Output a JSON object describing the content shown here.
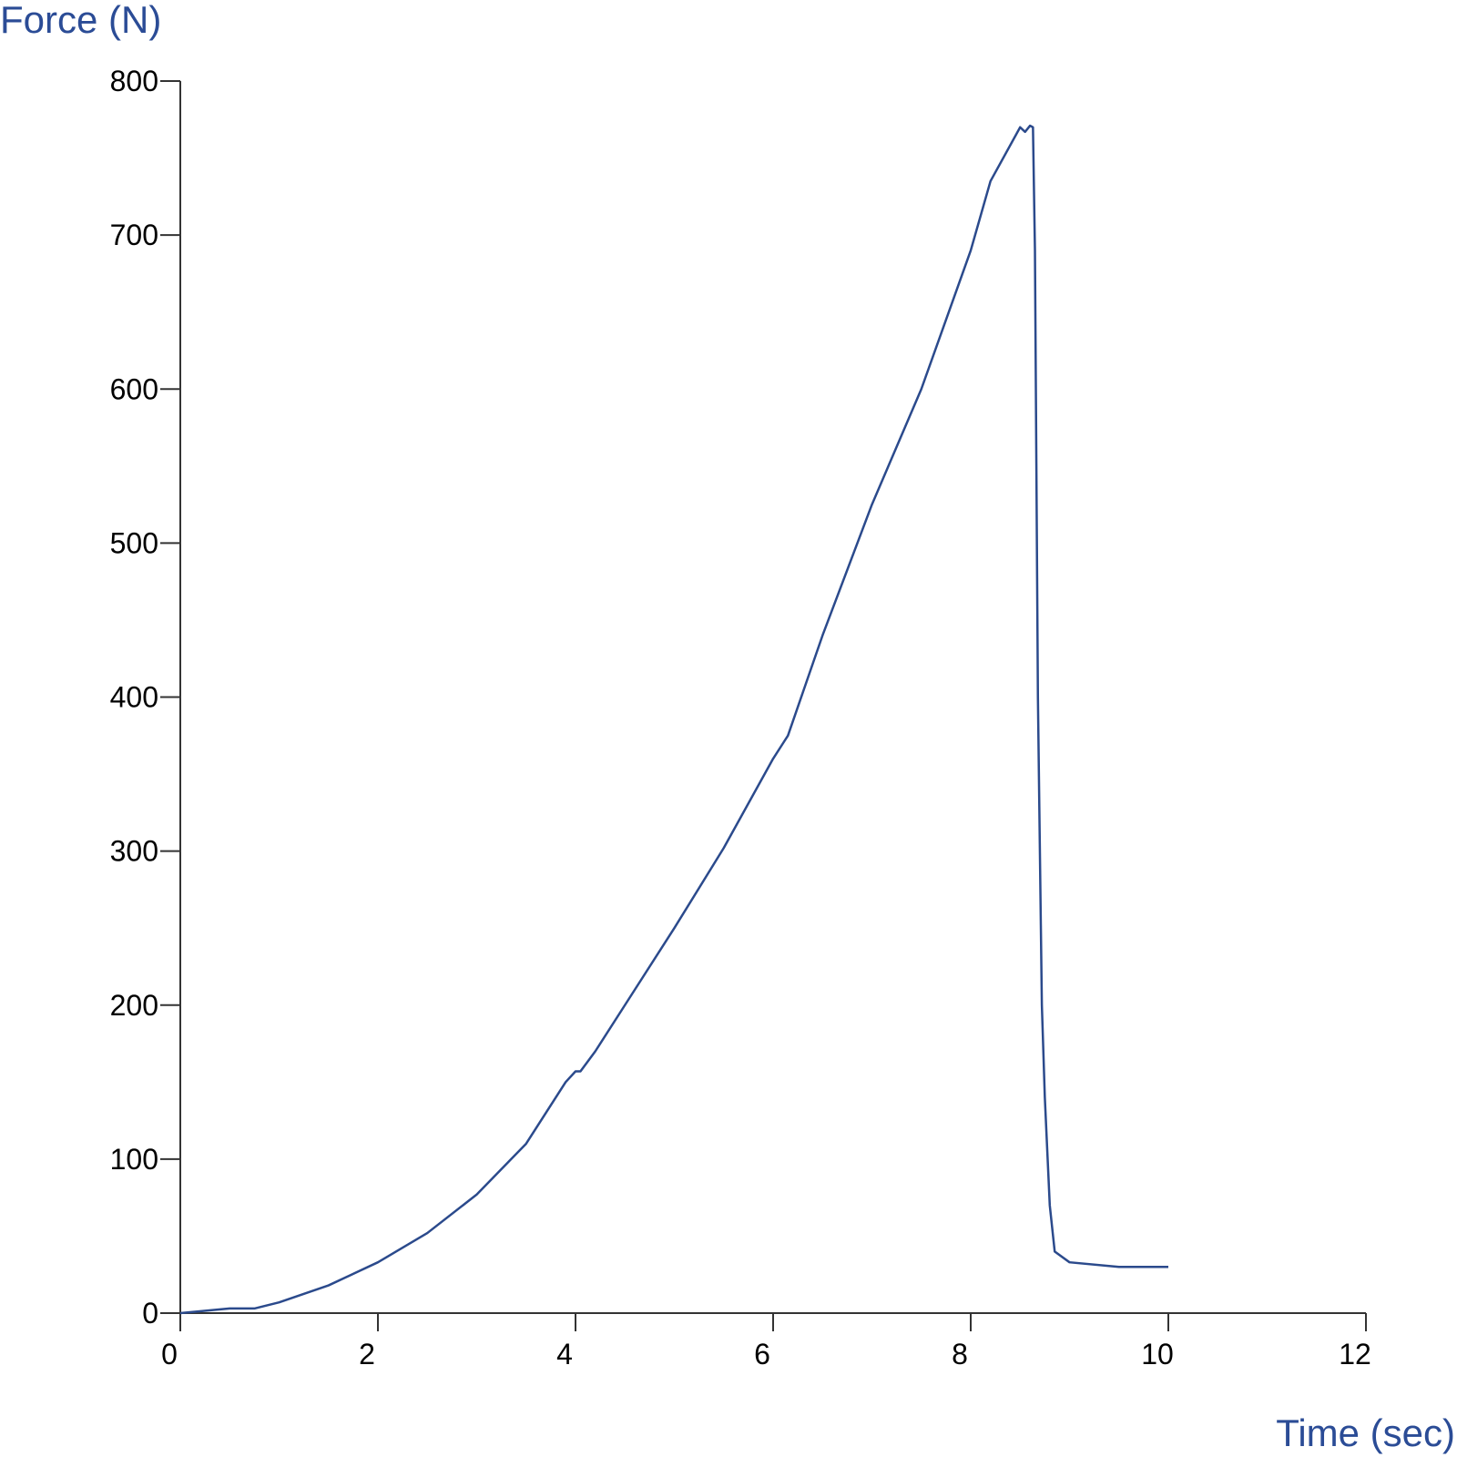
{
  "chart_data": {
    "type": "line",
    "y_label": "Force (N)",
    "x_label": "Time (sec)",
    "xlim": [
      0,
      12
    ],
    "xticks": [
      0,
      2,
      4,
      6,
      8,
      10,
      12
    ],
    "ylim": [
      0,
      800
    ],
    "yticks": [
      0,
      100,
      200,
      300,
      400,
      500,
      600,
      700,
      800
    ],
    "grid": false,
    "series": [
      {
        "color": "#2b4a8c",
        "x": [
          0,
          0.5,
          0.75,
          1.0,
          1.5,
          2.0,
          2.5,
          3.0,
          3.5,
          3.9,
          4.0,
          4.05,
          4.2,
          4.5,
          5.0,
          5.5,
          6.0,
          6.1,
          6.15,
          6.5,
          7.0,
          7.5,
          8.0,
          8.2,
          8.5,
          8.55,
          8.6,
          8.63,
          8.65,
          8.68,
          8.72,
          8.75,
          8.8,
          8.85,
          9.0,
          9.5,
          10.0
        ],
        "values": [
          0,
          3,
          3,
          7,
          18,
          33,
          52,
          77,
          110,
          150,
          157,
          157,
          170,
          200,
          250,
          302,
          360,
          370,
          375,
          440,
          525,
          600,
          690,
          735,
          770,
          767,
          771,
          770,
          690,
          400,
          200,
          140,
          70,
          40,
          33,
          30,
          30
        ]
      }
    ]
  }
}
